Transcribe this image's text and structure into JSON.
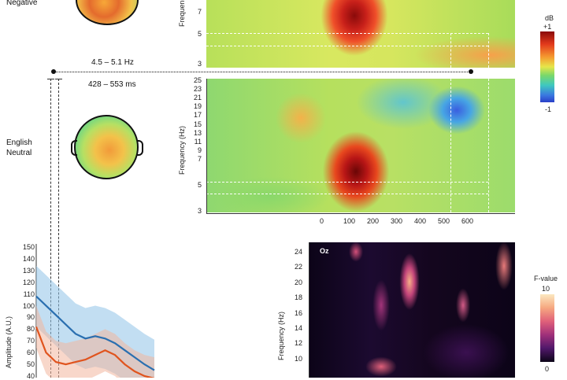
{
  "labels": {
    "negative": "Negative",
    "english": "English",
    "neutral": "Neutral",
    "freq_band": "4.5 – 5.1 Hz",
    "time_window": "428 – 553 ms",
    "freq_axis_label": "Frequency (Hz)",
    "freq_axis_label_top": "Frequency",
    "amp_axis_label": "Amplitude (A.U.)",
    "oz": "Oz"
  },
  "colorbar_db": {
    "title": "dB",
    "max": "+1",
    "min": "-1"
  },
  "colorbar_f": {
    "title": "F-value",
    "max": "10",
    "min": "0"
  },
  "ticks": {
    "top_freq": [
      "7",
      "5",
      "3"
    ],
    "mid_freq": [
      "25",
      "23",
      "21",
      "19",
      "17",
      "15",
      "13",
      "11",
      "9",
      "7",
      "5",
      "3"
    ],
    "time": [
      "0",
      "100",
      "200",
      "300",
      "400",
      "500",
      "600"
    ],
    "amp": [
      "150",
      "140",
      "130",
      "120",
      "110",
      "100",
      "90",
      "80",
      "70",
      "60",
      "50",
      "40"
    ],
    "f_freq": [
      "24",
      "22",
      "20",
      "18",
      "16",
      "14",
      "12",
      "10"
    ]
  },
  "colors": {
    "blue_line": "#2a6fb0",
    "orange_line": "#e0541e",
    "blue_band": "#8fc3e8",
    "orange_band": "#f2b79e"
  },
  "chart_data": [
    {
      "type": "heatmap",
      "ylabel": "Frequency (Hz)",
      "yticks": [
        25,
        23,
        21,
        19,
        17,
        15,
        13,
        11,
        9,
        7,
        5,
        3
      ],
      "xticks": [
        0,
        100,
        200,
        300,
        400,
        500,
        600
      ],
      "colorbar": {
        "title": "dB",
        "range": [
          -1,
          1
        ]
      },
      "highlight_freq": [
        4.5,
        5.1
      ],
      "highlight_time": [
        428,
        553
      ]
    },
    {
      "type": "line",
      "ylabel": "Amplitude (A.U.)",
      "yticks": [
        150,
        140,
        130,
        120,
        110,
        100,
        90,
        80,
        70,
        60,
        50,
        40
      ],
      "ylim": [
        40,
        150
      ],
      "series": [
        {
          "values": [
            108,
            100,
            92,
            84,
            76,
            72,
            74,
            72,
            68,
            62,
            56,
            50,
            45
          ]
        },
        {
          "values": [
            82,
            60,
            52,
            50,
            52,
            54,
            58,
            62,
            58,
            50,
            44,
            40,
            38
          ]
        }
      ]
    },
    {
      "type": "heatmap",
      "ylabel": "Frequency (Hz)",
      "yticks": [
        24,
        22,
        20,
        18,
        16,
        14,
        12,
        10
      ],
      "colorbar": {
        "title": "F-value",
        "range": [
          0,
          10
        ]
      }
    }
  ]
}
